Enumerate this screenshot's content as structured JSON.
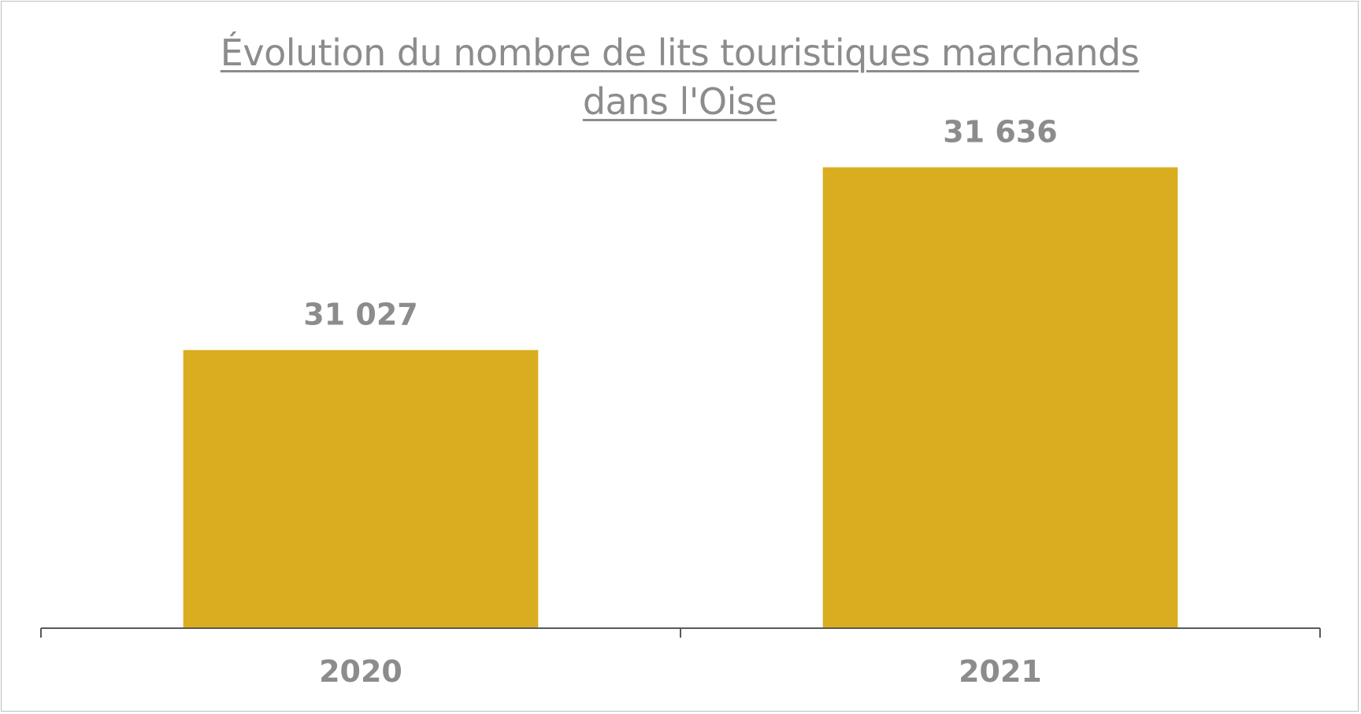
{
  "chart_data": {
    "type": "bar",
    "title_lines": [
      "Évolution du nombre de lits touristiques marchands",
      "dans l'Oise"
    ],
    "categories": [
      "2020",
      "2021"
    ],
    "values": [
      31027,
      31636
    ],
    "value_labels": [
      "31 027",
      "31 636"
    ],
    "bar_color": "#DAAC1F",
    "axis_color": "#595959",
    "text_color": "#8C8C8C",
    "xlabel": "",
    "ylabel": "",
    "y_axis_visible": false,
    "ylim": [
      30100,
      31800
    ],
    "grid": false,
    "legend": "none"
  }
}
